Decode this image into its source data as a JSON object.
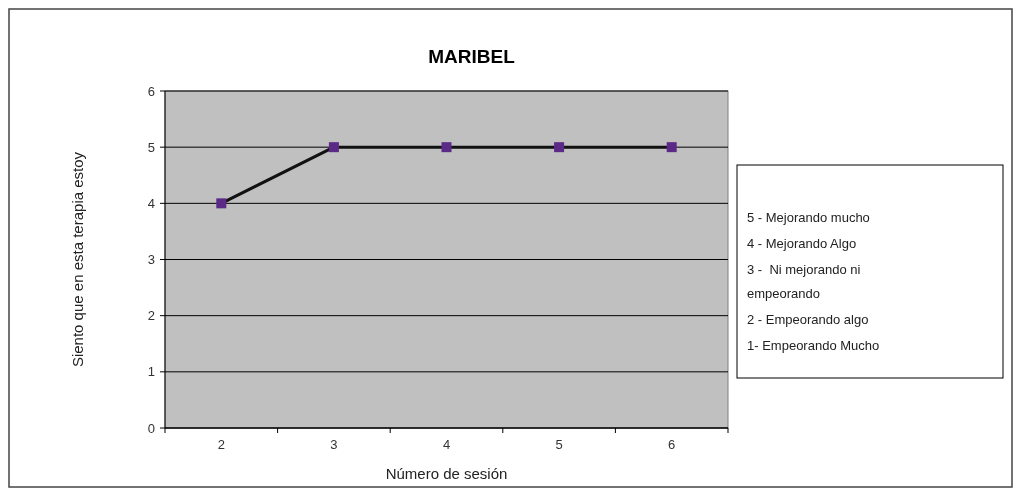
{
  "chart_data": {
    "type": "line",
    "title": "MARIBEL",
    "xlabel": "Número de sesión",
    "ylabel": "Siento que en esta terapia estoy",
    "categories": [
      "2",
      "3",
      "4",
      "5",
      "6"
    ],
    "series": [
      {
        "color": "#5b2a86",
        "values": [
          4,
          5,
          5,
          5,
          5
        ]
      }
    ],
    "ylim": [
      0,
      6
    ],
    "yticks": [
      0,
      1,
      2,
      3,
      4,
      5,
      6
    ],
    "grid": "y",
    "marker": "square",
    "line_style": "solid",
    "annotations": [
      "5 - Mejorando mucho",
      "4 - Mejorando Algo",
      "3 -  Ni mejorando ni empeorando",
      "2 - Empeorando algo",
      "1- Empeorando Mucho"
    ]
  }
}
